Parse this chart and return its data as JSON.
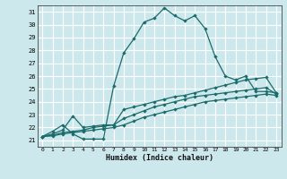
{
  "xlabel": "Humidex (Indice chaleur)",
  "bg_color": "#cde8ec",
  "grid_color": "#ffffff",
  "line_color": "#1a6b6b",
  "xlim": [
    -0.5,
    23.5
  ],
  "ylim": [
    20.5,
    31.5
  ],
  "yticks": [
    21,
    22,
    23,
    24,
    25,
    26,
    27,
    28,
    29,
    30,
    31
  ],
  "xticks": [
    0,
    1,
    2,
    3,
    4,
    5,
    6,
    7,
    8,
    9,
    10,
    11,
    12,
    13,
    14,
    15,
    16,
    17,
    18,
    19,
    20,
    21,
    22,
    23
  ],
  "curve1_x": [
    0,
    1,
    2,
    3,
    4,
    5,
    6,
    7,
    8,
    9,
    10,
    11,
    12,
    13,
    14,
    15,
    16,
    17,
    18,
    19,
    20,
    21,
    22,
    23
  ],
  "curve1_y": [
    21.3,
    21.7,
    22.2,
    21.5,
    21.1,
    21.1,
    21.1,
    25.2,
    27.8,
    28.9,
    30.2,
    30.5,
    31.3,
    30.7,
    30.3,
    30.7,
    29.7,
    27.5,
    26.0,
    25.7,
    26.0,
    24.8,
    24.8,
    24.7
  ],
  "curve2_x": [
    0,
    1,
    2,
    3,
    4,
    5,
    6,
    7,
    8,
    9,
    10,
    11,
    12,
    13,
    14,
    15,
    16,
    17,
    18,
    19,
    20,
    21,
    22,
    23
  ],
  "curve2_y": [
    21.3,
    21.5,
    21.8,
    22.9,
    22.0,
    22.1,
    22.2,
    22.2,
    23.4,
    23.6,
    23.8,
    24.0,
    24.2,
    24.4,
    24.5,
    24.7,
    24.9,
    25.1,
    25.3,
    25.5,
    25.7,
    25.8,
    25.9,
    24.7
  ],
  "curve3_x": [
    0,
    1,
    2,
    3,
    4,
    5,
    6,
    7,
    8,
    9,
    10,
    11,
    12,
    13,
    14,
    15,
    16,
    17,
    18,
    19,
    20,
    21,
    22,
    23
  ],
  "curve3_y": [
    21.3,
    21.4,
    21.6,
    21.7,
    21.8,
    22.0,
    22.1,
    22.2,
    22.7,
    23.0,
    23.3,
    23.6,
    23.8,
    24.0,
    24.2,
    24.4,
    24.5,
    24.6,
    24.7,
    24.8,
    24.9,
    25.0,
    25.1,
    24.6
  ],
  "curve4_x": [
    0,
    1,
    2,
    3,
    4,
    5,
    6,
    7,
    8,
    9,
    10,
    11,
    12,
    13,
    14,
    15,
    16,
    17,
    18,
    19,
    20,
    21,
    22,
    23
  ],
  "curve4_y": [
    21.3,
    21.35,
    21.5,
    21.6,
    21.7,
    21.8,
    21.9,
    22.0,
    22.2,
    22.5,
    22.8,
    23.0,
    23.2,
    23.4,
    23.6,
    23.8,
    24.0,
    24.1,
    24.2,
    24.3,
    24.4,
    24.5,
    24.6,
    24.5
  ]
}
